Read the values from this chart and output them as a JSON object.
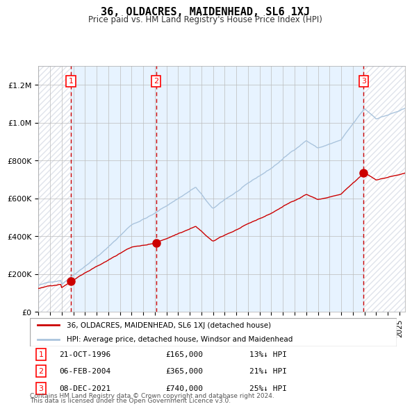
{
  "title": "36, OLDACRES, MAIDENHEAD, SL6 1XJ",
  "subtitle": "Price paid vs. HM Land Registry's House Price Index (HPI)",
  "transactions": [
    {
      "num": 1,
      "date_label": "21-OCT-1996",
      "price": 165000,
      "pct": "13%↓ HPI",
      "year_x": 1996.81
    },
    {
      "num": 2,
      "date_label": "06-FEB-2004",
      "price": 365000,
      "pct": "21%↓ HPI",
      "year_x": 2004.1
    },
    {
      "num": 3,
      "date_label": "08-DEC-2021",
      "price": 740000,
      "pct": "25%↓ HPI",
      "year_x": 2021.93
    }
  ],
  "legend_property": "36, OLDACRES, MAIDENHEAD, SL6 1XJ (detached house)",
  "legend_hpi": "HPI: Average price, detached house, Windsor and Maidenhead",
  "footer1": "Contains HM Land Registry data © Crown copyright and database right 2024.",
  "footer2": "This data is licensed under the Open Government Licence v3.0.",
  "property_color": "#cc0000",
  "hpi_color": "#aac4dd",
  "background_color": "#ddeeff",
  "hatch_color": "#c8c8d8",
  "grid_color": "#bbbbbb",
  "vline_color": "#cc0000",
  "ylim": [
    0,
    1300000
  ],
  "yticks": [
    0,
    200000,
    400000,
    600000,
    800000,
    1000000,
    1200000
  ],
  "xlim_start": 1994.0,
  "xlim_end": 2025.5
}
